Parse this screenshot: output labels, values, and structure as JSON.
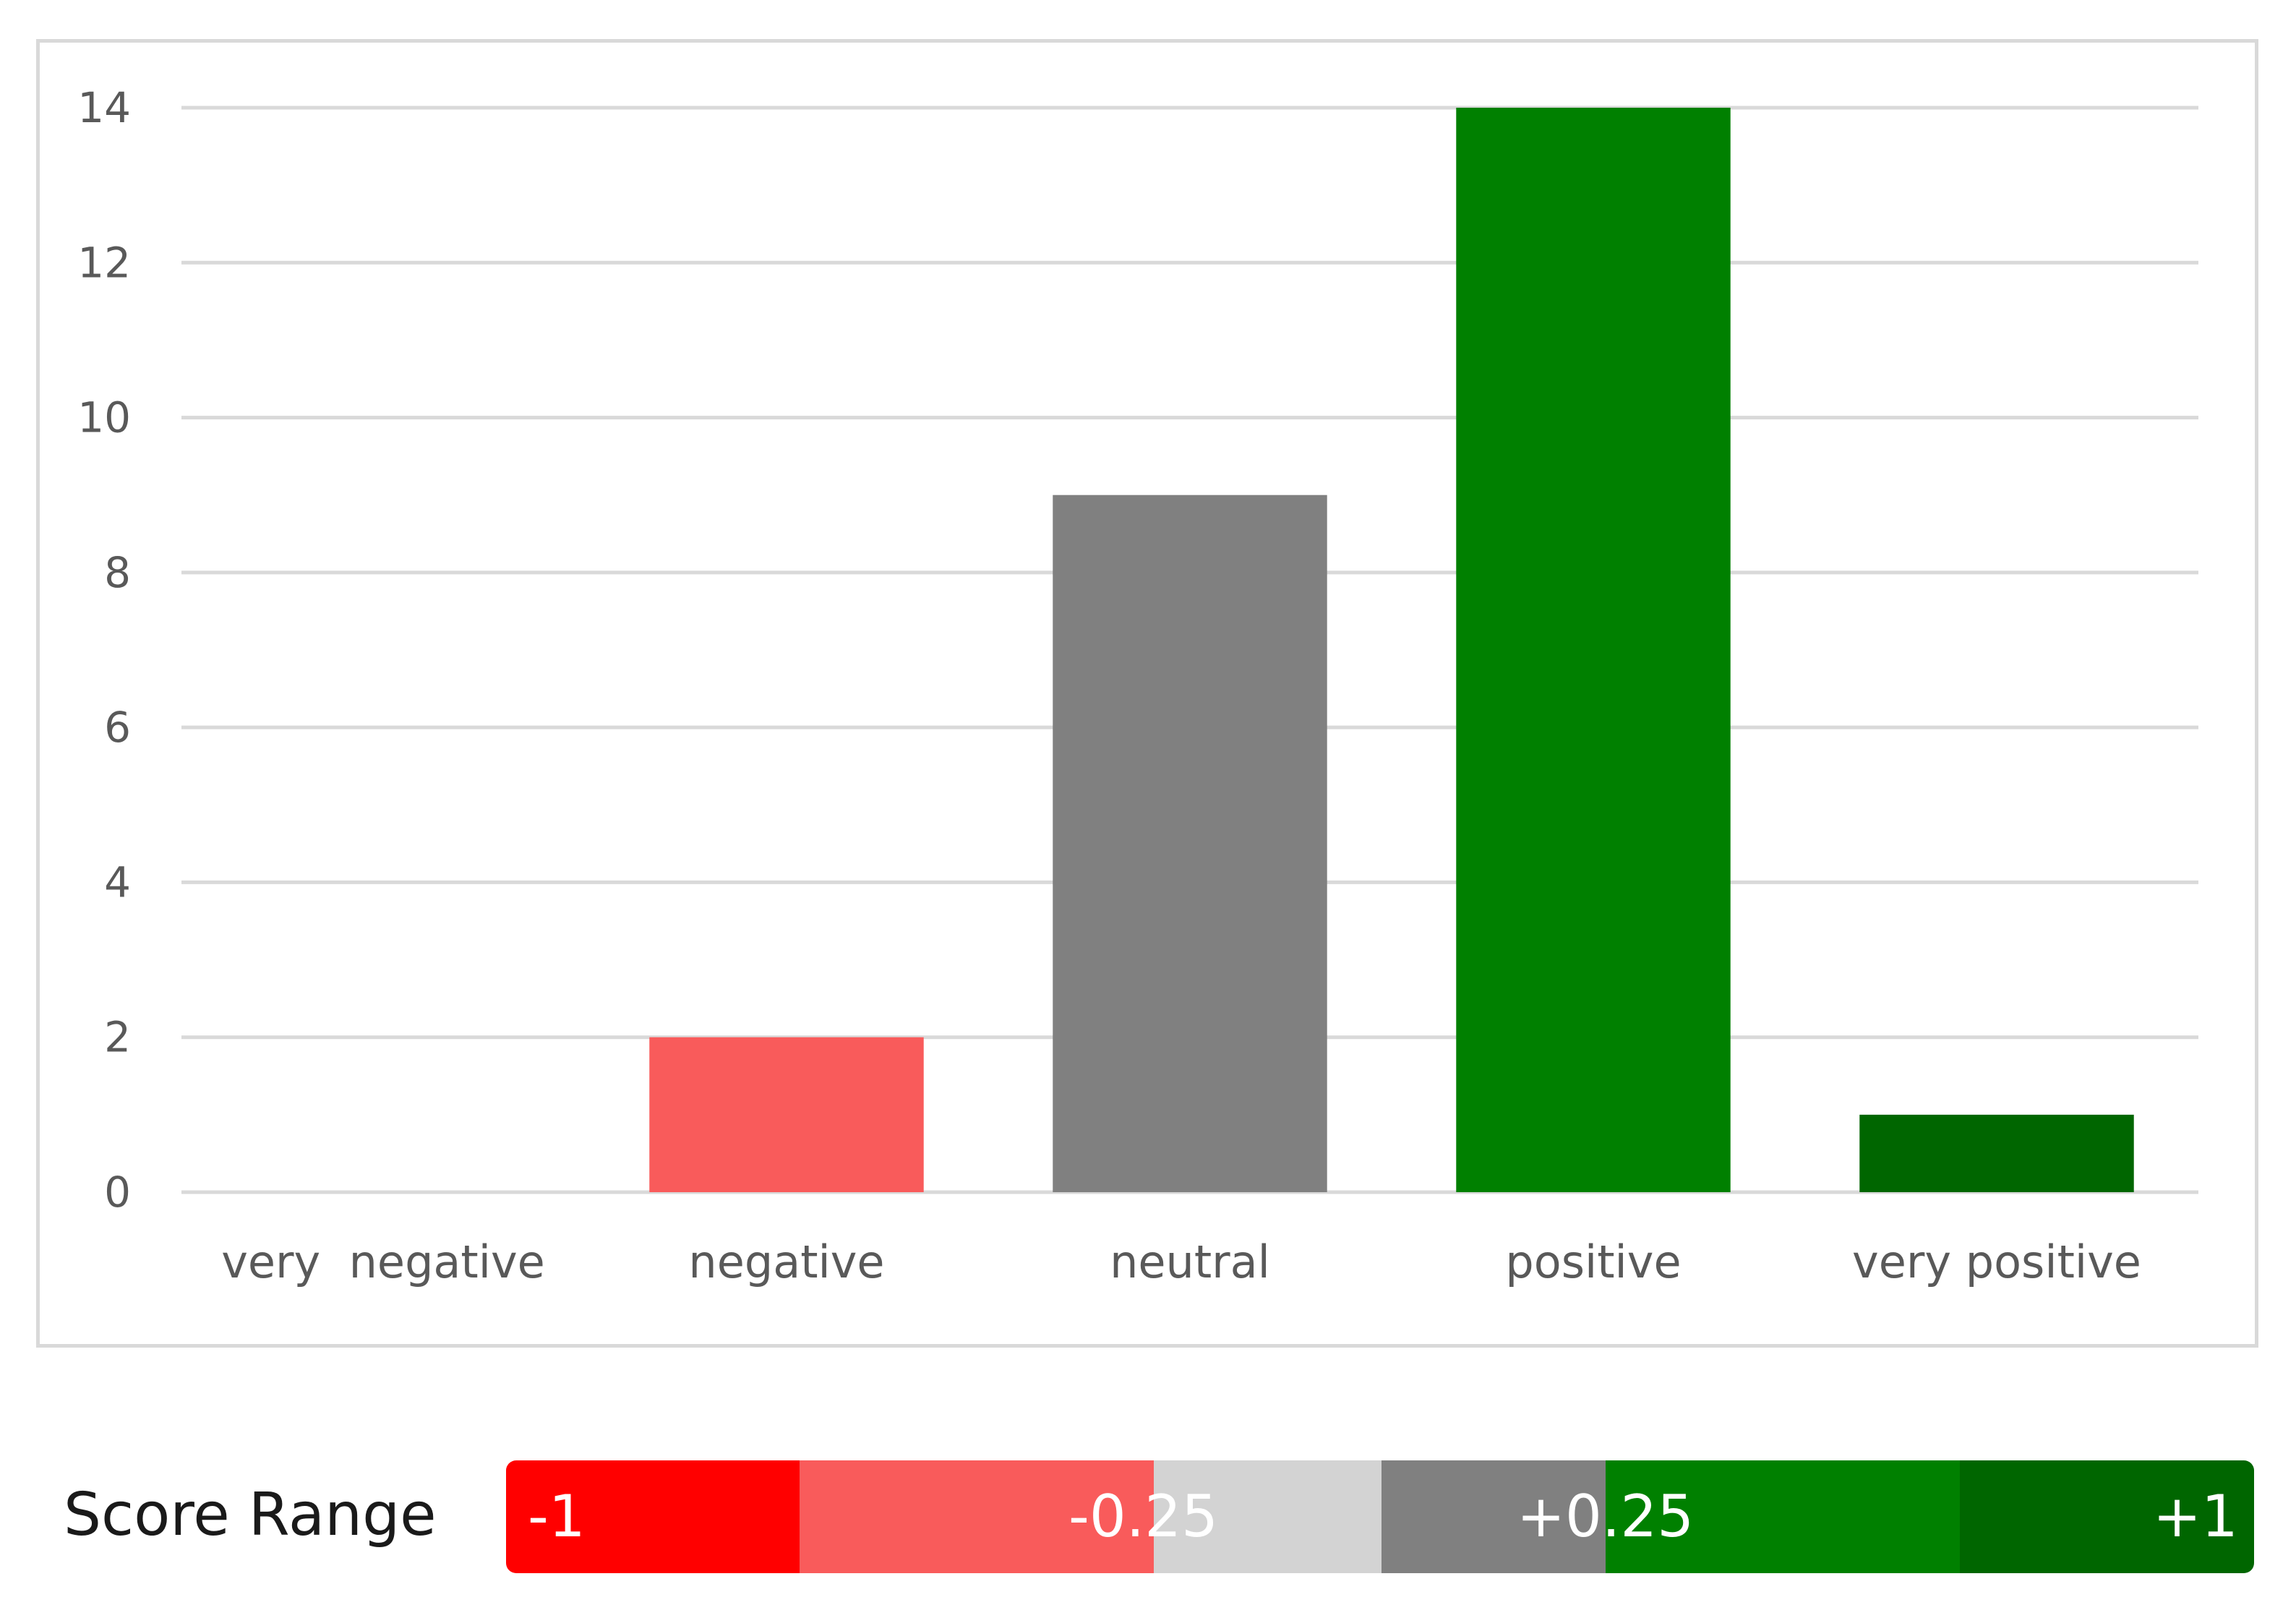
{
  "chart_data": {
    "type": "bar",
    "categories": [
      "very  negative",
      "negative",
      "neutral",
      "positive",
      "very positive"
    ],
    "values": [
      0,
      2,
      9,
      14,
      1
    ],
    "colors": [
      "#ffffff",
      "#f95b5b",
      "#808080",
      "#008000",
      "#006600"
    ],
    "ylim": [
      0,
      14
    ],
    "yticks": [
      0,
      2,
      4,
      6,
      8,
      10,
      12,
      14
    ],
    "grid": true,
    "gridColor": "#d9d9d9"
  },
  "score_range": {
    "label": "Score Range",
    "segments": [
      {
        "color": "#ff0000"
      },
      {
        "color": "#f95b5b"
      },
      {
        "color": "#d3d3d3"
      },
      {
        "color": "#808080"
      },
      {
        "color": "#008000"
      },
      {
        "color": "#006600"
      }
    ],
    "labels": [
      "-1",
      "-0.25",
      "+0.25",
      "+1"
    ]
  }
}
